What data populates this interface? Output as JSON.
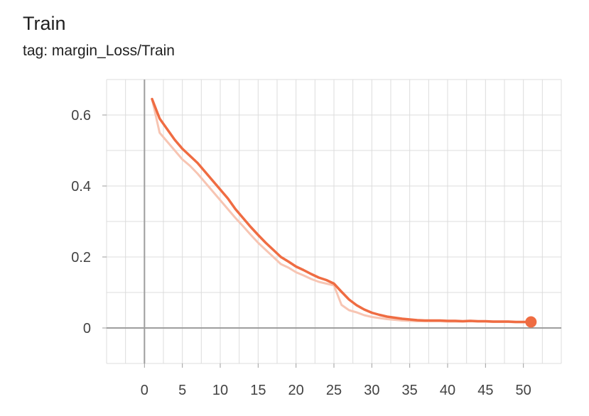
{
  "header": {
    "title": "Train",
    "subtitle": "tag: margin_Loss/Train"
  },
  "chart_data": {
    "type": "line",
    "title": "Train",
    "subtitle": "tag: margin_Loss/Train",
    "xlabel": "",
    "ylabel": "",
    "xlim": [
      -5,
      55
    ],
    "ylim": [
      -0.1,
      0.7
    ],
    "x_ticks": [
      0,
      5,
      10,
      15,
      20,
      25,
      30,
      35,
      40,
      45,
      50
    ],
    "x_tick_labels": [
      "0",
      "5",
      "10",
      "15",
      "20",
      "25",
      "30",
      "35",
      "40",
      "45",
      "50"
    ],
    "y_ticks": [
      0,
      0.2,
      0.4,
      0.6
    ],
    "y_tick_labels": [
      "0",
      "0.2",
      "0.4",
      "0.6"
    ],
    "grid": true,
    "colors": {
      "smoothed": "#ef6c42",
      "raw": "#f7c5b3"
    },
    "series": [
      {
        "role": "smoothed",
        "x": [
          1,
          2,
          3,
          4,
          5,
          6,
          7,
          8,
          9,
          10,
          11,
          12,
          13,
          14,
          15,
          16,
          17,
          18,
          19,
          20,
          21,
          22,
          23,
          24,
          25,
          26,
          27,
          28,
          29,
          30,
          31,
          32,
          33,
          34,
          35,
          36,
          37,
          38,
          39,
          40,
          41,
          42,
          43,
          44,
          45,
          46,
          47,
          48,
          49,
          50,
          51
        ],
        "values": [
          0.645,
          0.59,
          0.56,
          0.53,
          0.505,
          0.485,
          0.465,
          0.44,
          0.415,
          0.39,
          0.365,
          0.335,
          0.31,
          0.285,
          0.262,
          0.24,
          0.22,
          0.2,
          0.187,
          0.173,
          0.163,
          0.152,
          0.142,
          0.135,
          0.125,
          0.102,
          0.08,
          0.064,
          0.052,
          0.043,
          0.037,
          0.032,
          0.029,
          0.026,
          0.024,
          0.022,
          0.021,
          0.021,
          0.021,
          0.02,
          0.02,
          0.019,
          0.02,
          0.019,
          0.019,
          0.018,
          0.018,
          0.018,
          0.017,
          0.017,
          0.017
        ]
      },
      {
        "role": "raw",
        "x": [
          1,
          2,
          3,
          4,
          5,
          6,
          7,
          8,
          9,
          10,
          11,
          12,
          13,
          14,
          15,
          16,
          17,
          18,
          19,
          20,
          21,
          22,
          23,
          24,
          25,
          26,
          27,
          28,
          29,
          30,
          31,
          32,
          33,
          34,
          35,
          36,
          37,
          38,
          39,
          40,
          41,
          42,
          43,
          44,
          45,
          46,
          47,
          48,
          49,
          50,
          51
        ],
        "values": [
          0.645,
          0.55,
          0.525,
          0.5,
          0.475,
          0.457,
          0.435,
          0.41,
          0.385,
          0.36,
          0.335,
          0.31,
          0.287,
          0.263,
          0.24,
          0.22,
          0.2,
          0.18,
          0.17,
          0.157,
          0.148,
          0.138,
          0.13,
          0.125,
          0.12,
          0.065,
          0.05,
          0.044,
          0.036,
          0.031,
          0.028,
          0.025,
          0.023,
          0.021,
          0.02,
          0.019,
          0.019,
          0.019,
          0.019,
          0.018,
          0.018,
          0.018,
          0.019,
          0.018,
          0.018,
          0.017,
          0.017,
          0.017,
          0.016,
          0.016,
          0.016
        ]
      }
    ]
  }
}
